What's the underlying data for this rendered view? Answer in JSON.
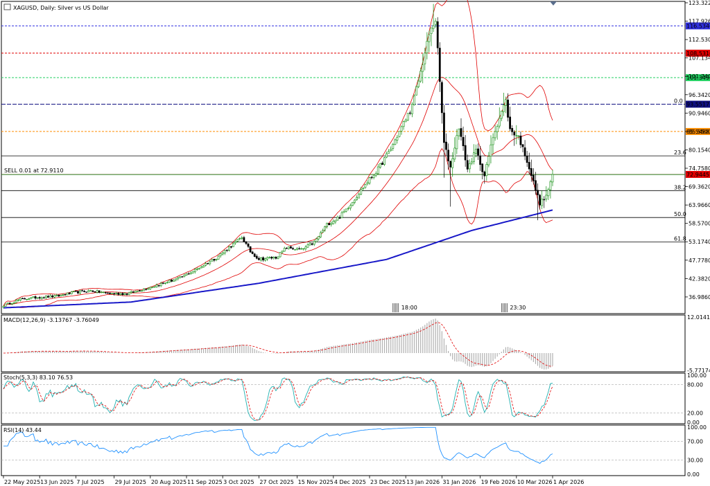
{
  "header": {
    "title": "XAGUSD, Daily:  Silver vs US Dollar"
  },
  "colors": {
    "bull": "#0a8a0a",
    "bear": "#000000",
    "bands": "#e00000",
    "ma": "#1818c8",
    "stoch_main": "#20b0b0",
    "stoch_signal": "#e00000",
    "rsi": "#1e90ff",
    "macd_hist": "#b0b0b0",
    "macd_signal": "#e00000"
  },
  "chart_data": [
    {
      "type": "candlestick",
      "symbol": "XAGUSD",
      "timeframe": "Daily",
      "title": "XAGUSD, Daily:  Silver vs US Dollar",
      "ylim": [
        32.5,
        123.322
      ],
      "price_ticks": [
        "123.3220",
        "117.9260",
        "112.5300",
        "107.1340",
        "101.7400",
        "96.3420",
        "90.9460",
        "85.5500",
        "80.1540",
        "74.7580",
        "69.3620",
        "63.9660",
        "58.5700",
        "53.1740",
        "47.7780",
        "42.3820",
        "36.9860"
      ],
      "x_labels": [
        "22 May 2025",
        "13 Jun 2025",
        "7 Jul 2025",
        "29 Jul 2025",
        "20 Aug 2025",
        "11 Sep 2025",
        "3 Oct 2025",
        "27 Oct 2025",
        "15 Nov 2025",
        "4 Dec 2025",
        "23 Dec 2025",
        "13 Jan 2026",
        "31 Jan 2026",
        "19 Feb 2026",
        "10 Mar 2026",
        "1 Apr 2026"
      ],
      "horizontal_lines": [
        {
          "label": "116.5346",
          "value": 116.5346,
          "color": "#3030e0",
          "style": "dotted"
        },
        {
          "label": "108.5316",
          "value": 108.5316,
          "color": "#e00000",
          "style": "dotted"
        },
        {
          "label": "101.3495",
          "value": 101.3495,
          "color": "#20d060",
          "style": "dotted"
        },
        {
          "label": "93.5517",
          "value": 93.5517,
          "color": "#101080",
          "style": "dashed"
        },
        {
          "label": "85.5488",
          "value": 85.5488,
          "color": "#ff8c00",
          "style": "dotted"
        },
        {
          "label": "72.9445",
          "value": 72.9445,
          "color": "#e00000",
          "style": "solid"
        }
      ],
      "fibonacci": [
        {
          "label": "0.0",
          "value": 93.5517
        },
        {
          "label": "23.6",
          "value": 78.4
        },
        {
          "label": "38.2",
          "value": 68.2
        },
        {
          "label": "50.0",
          "value": 60.3
        },
        {
          "label": "61.8",
          "value": 53.1
        }
      ],
      "trade_line": {
        "label": "SELL 0.01 at 72.9110",
        "value": 72.911
      },
      "session_markers": [
        "18:00",
        "23:30"
      ],
      "closes_anchor": [
        [
          0,
          34.5
        ],
        [
          8,
          36.3
        ],
        [
          16,
          36.9
        ],
        [
          25,
          37.2
        ],
        [
          33,
          38.3
        ],
        [
          41,
          38.8
        ],
        [
          50,
          38.0
        ],
        [
          58,
          37.9
        ],
        [
          66,
          39.3
        ],
        [
          75,
          41.0
        ],
        [
          83,
          42.6
        ],
        [
          91,
          45.2
        ],
        [
          100,
          48.5
        ],
        [
          108,
          52.5
        ],
        [
          112,
          54.5
        ],
        [
          116,
          50.3
        ],
        [
          120,
          48.1
        ],
        [
          128,
          48.6
        ],
        [
          133,
          51.5
        ],
        [
          140,
          50.8
        ],
        [
          146,
          53.0
        ],
        [
          152,
          58.3
        ],
        [
          158,
          60.5
        ],
        [
          164,
          65.0
        ],
        [
          170,
          70.0
        ],
        [
          176,
          74.5
        ],
        [
          182,
          80.5
        ],
        [
          188,
          88.0
        ],
        [
          192,
          93.0
        ],
        [
          196,
          103.0
        ],
        [
          200,
          114.0
        ],
        [
          203,
          118.5
        ],
        [
          205,
          100.0
        ],
        [
          207,
          82.0
        ],
        [
          210,
          75.0
        ],
        [
          214,
          87.0
        ],
        [
          218,
          74.5
        ],
        [
          222,
          80.0
        ],
        [
          226,
          72.5
        ],
        [
          230,
          84.0
        ],
        [
          234,
          91.5
        ],
        [
          236,
          94.5
        ],
        [
          238,
          86.0
        ],
        [
          242,
          84.0
        ],
        [
          246,
          77.0
        ],
        [
          250,
          68.5
        ],
        [
          252,
          64.5
        ],
        [
          255,
          66.5
        ],
        [
          258,
          72.9
        ]
      ],
      "ma200_anchor": [
        [
          0,
          33.8
        ],
        [
          60,
          35.5
        ],
        [
          120,
          41.0
        ],
        [
          180,
          48.0
        ],
        [
          220,
          56.5
        ],
        [
          258,
          62.5
        ]
      ],
      "bands_period": 20,
      "bands_deviation": 2
    },
    {
      "type": "line",
      "indicator": "MACD",
      "label": "MACD(12,26,9) -3.13767 -3.76049",
      "main": -3.13767,
      "signal": -3.76049,
      "ylim": [
        -5.77174,
        12.01414
      ],
      "ticks": [
        "12.01414",
        "-5.77174"
      ]
    },
    {
      "type": "line",
      "indicator": "Stochastic",
      "label": "Stoch(5,3,3) 83.10 76.53",
      "main": 83.1,
      "signal": 76.53,
      "ylim": [
        0,
        100
      ],
      "ticks": [
        "100.00",
        "80.00",
        "20.00",
        "0.00"
      ]
    },
    {
      "type": "line",
      "indicator": "RSI",
      "label": "RSI(14) 43.44",
      "value": 43.44,
      "ylim": [
        0,
        100
      ],
      "ticks": [
        "100.00",
        "70.00",
        "30.00",
        "0.00"
      ]
    }
  ]
}
